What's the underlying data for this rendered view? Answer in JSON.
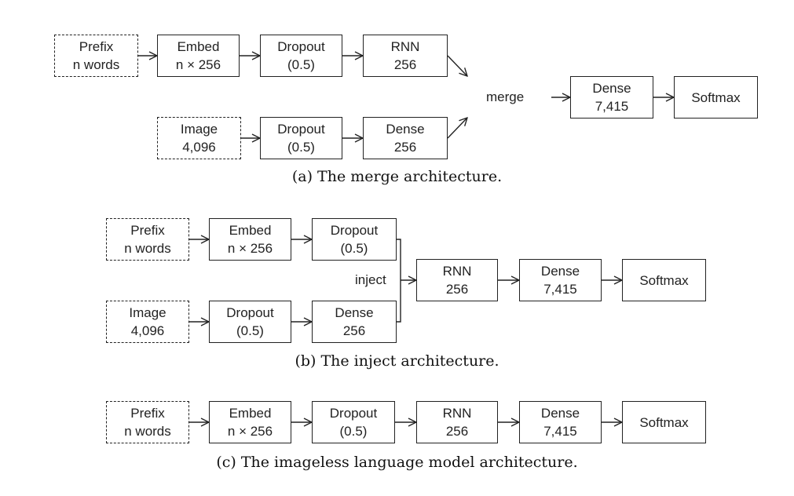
{
  "diagram_a": {
    "prefix": [
      "Prefix",
      "n words"
    ],
    "embed": [
      "Embed",
      "n × 256"
    ],
    "dropout_text": [
      "Dropout",
      "(0.5)"
    ],
    "rnn": [
      "RNN",
      "256"
    ],
    "image": [
      "Image",
      "4,096"
    ],
    "dropout_image": [
      "Dropout",
      "(0.5)"
    ],
    "dense_image": [
      "Dense",
      "256"
    ],
    "merge_label": "merge",
    "dense_out": [
      "Dense",
      "7,415"
    ],
    "softmax": "Softmax",
    "caption": "(a)  The merge architecture."
  },
  "diagram_b": {
    "prefix": [
      "Prefix",
      "n words"
    ],
    "embed": [
      "Embed",
      "n × 256"
    ],
    "dropout_text": [
      "Dropout",
      "(0.5)"
    ],
    "image": [
      "Image",
      "4,096"
    ],
    "dropout_image": [
      "Dropout",
      "(0.5)"
    ],
    "dense_image": [
      "Dense",
      "256"
    ],
    "inject_label": "inject",
    "rnn": [
      "RNN",
      "256"
    ],
    "dense_out": [
      "Dense",
      "7,415"
    ],
    "softmax": "Softmax",
    "caption": "(b)  The inject architecture."
  },
  "diagram_c": {
    "prefix": [
      "Prefix",
      "n words"
    ],
    "embed": [
      "Embed",
      "n × 256"
    ],
    "dropout": [
      "Dropout",
      "(0.5)"
    ],
    "rnn": [
      "RNN",
      "256"
    ],
    "dense_out": [
      "Dense",
      "7,415"
    ],
    "softmax": "Softmax",
    "caption": "(c)  The imageless language model architecture."
  }
}
